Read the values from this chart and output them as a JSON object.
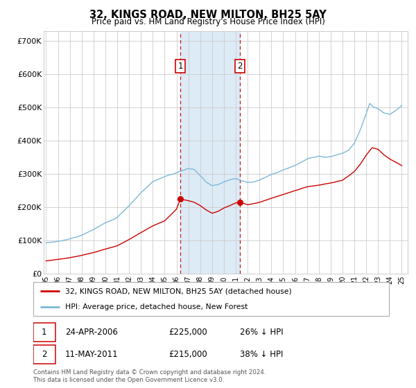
{
  "title": "32, KINGS ROAD, NEW MILTON, BH25 5AY",
  "subtitle": "Price paid vs. HM Land Registry's House Price Index (HPI)",
  "ylim": [
    0,
    730000
  ],
  "yticks": [
    0,
    100000,
    200000,
    300000,
    400000,
    500000,
    600000,
    700000
  ],
  "ytick_labels": [
    "£0",
    "£100K",
    "£200K",
    "£300K",
    "£400K",
    "£500K",
    "£600K",
    "£700K"
  ],
  "background_color": "#ffffff",
  "grid_color": "#cccccc",
  "hpi_color": "#7db8d8",
  "price_color": "#cc0000",
  "sale1_date": 2006.32,
  "sale1_price": 225000,
  "sale1_label": "1",
  "sale1_date_str": "24-APR-2006",
  "sale1_pct": "26% ↓ HPI",
  "sale2_date": 2011.37,
  "sale2_price": 215000,
  "sale2_label": "2",
  "sale2_date_str": "11-MAY-2011",
  "sale2_pct": "38% ↓ HPI",
  "shade_color": "#d6e8f5",
  "legend_line1": "32, KINGS ROAD, NEW MILTON, BH25 5AY (detached house)",
  "legend_line2": "HPI: Average price, detached house, New Forest",
  "footnote": "Contains HM Land Registry data © Crown copyright and database right 2024.\nThis data is licensed under the Open Government Licence v3.0.",
  "xmin": 1994.8,
  "xmax": 2025.5,
  "xtick_years": [
    1995,
    1996,
    1997,
    1998,
    1999,
    2000,
    2001,
    2002,
    2003,
    2004,
    2005,
    2006,
    2007,
    2008,
    2009,
    2010,
    2011,
    2012,
    2013,
    2014,
    2015,
    2016,
    2017,
    2018,
    2019,
    2020,
    2021,
    2022,
    2023,
    2024,
    2025
  ]
}
